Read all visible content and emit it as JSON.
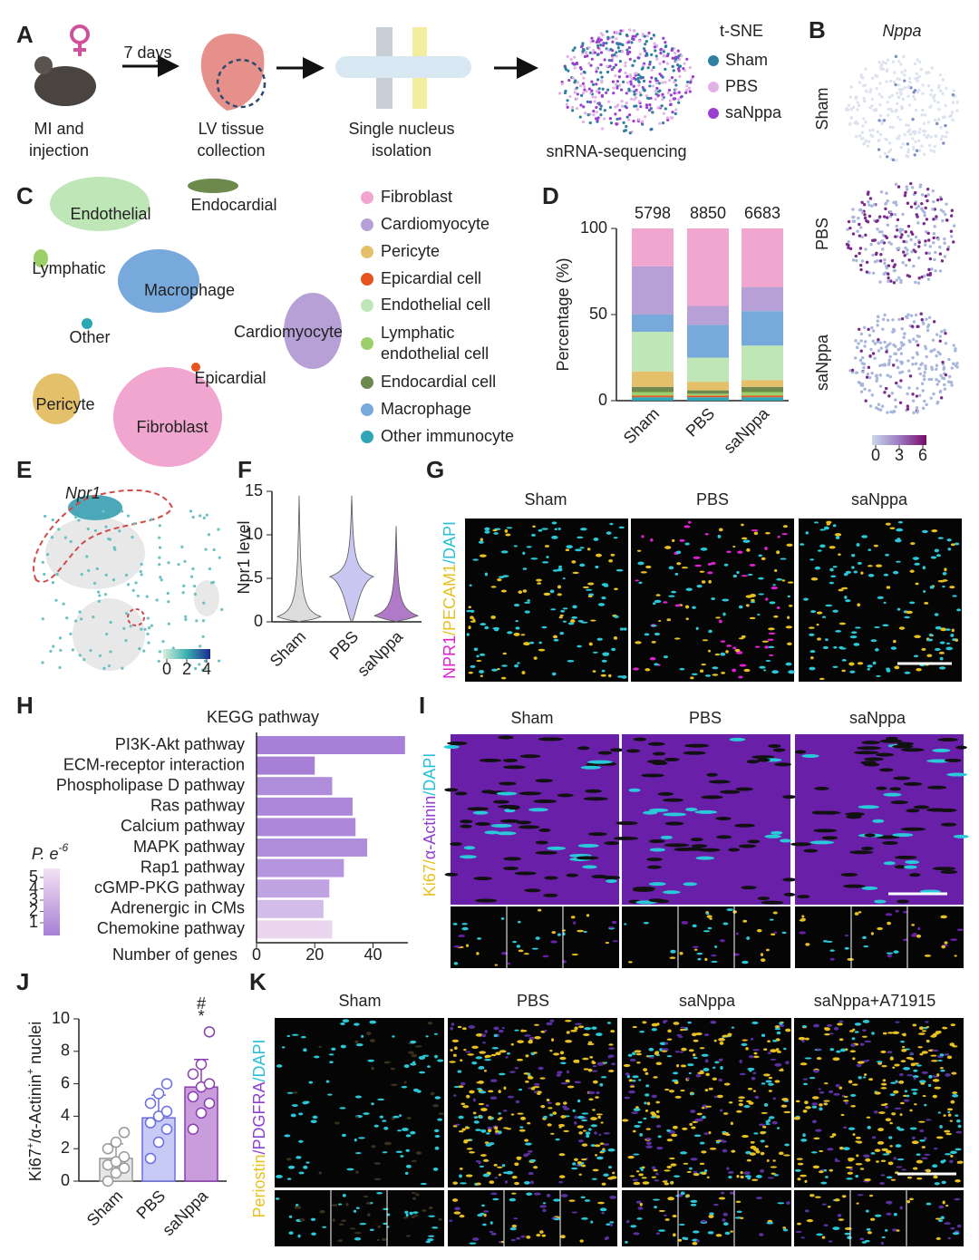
{
  "letters": [
    "A",
    "B",
    "C",
    "D",
    "E",
    "F",
    "G",
    "H",
    "I",
    "J",
    "K"
  ],
  "panel_a": {
    "arrow_label": "7 days",
    "steps": [
      [
        "MI and",
        "injection"
      ],
      [
        "LV tissue",
        "collection"
      ],
      [
        "Single nucleus",
        "isolation"
      ],
      [
        "snRNA-sequencing"
      ]
    ],
    "legend_title": "t-SNE",
    "legend": [
      {
        "name": "Sham",
        "color": "#2e7fa0"
      },
      {
        "name": "PBS",
        "color": "#e2b2e6"
      },
      {
        "name": "saNppa",
        "color": "#9b3fd0"
      }
    ]
  },
  "panel_b": {
    "gene": "Nppa",
    "rows": [
      "Sham",
      "PBS",
      "saNppa"
    ],
    "colorbar_ticks": [
      0,
      3,
      6
    ]
  },
  "panel_c": {
    "clusters": [
      "Endothelial",
      "Endocardial",
      "Lymphatic",
      "Macrophage",
      "Other",
      "Cardiomyocyte",
      "Epicardial",
      "Pericyte",
      "Fibroblast"
    ],
    "legend": [
      {
        "name": [
          "Fibroblast"
        ],
        "color": "#f0a6cf"
      },
      {
        "name": [
          "Cardiomyocyte"
        ],
        "color": "#b6a0d6"
      },
      {
        "name": [
          "Pericyte"
        ],
        "color": "#e4c06a"
      },
      {
        "name": [
          "Epicardial cell"
        ],
        "color": "#e5531f"
      },
      {
        "name": [
          "Endothelial cell"
        ],
        "color": "#bfe6b6"
      },
      {
        "name": [
          "Lymphatic",
          "endothelial cell"
        ],
        "color": "#9ccf6a"
      },
      {
        "name": [
          "Endocardial cell"
        ],
        "color": "#6d8a4c"
      },
      {
        "name": [
          "Macrophage"
        ],
        "color": "#78a9dc"
      },
      {
        "name": [
          "Other immunocyte"
        ],
        "color": "#2ea6b5"
      }
    ]
  },
  "panel_e": {
    "gene": "Npr1",
    "colorbar_ticks": [
      0,
      2,
      4
    ]
  },
  "panel_g": {
    "columns": [
      "Sham",
      "PBS",
      "saNppa"
    ],
    "stain": [
      {
        "text": "NPR1",
        "color": "#e020d0"
      },
      {
        "text": "/",
        "color": "#e8c020"
      },
      {
        "text": "PECAM1",
        "color": "#e8c020"
      },
      {
        "text": "/DAPI",
        "color": "#28c0d8"
      }
    ]
  },
  "panel_i": {
    "columns": [
      "Sham",
      "PBS",
      "saNppa"
    ],
    "stain": [
      {
        "text": "Ki67",
        "color": "#e8c020"
      },
      {
        "text": "/",
        "color": "#e8c020"
      },
      {
        "text": "α-Actinin",
        "color": "#9040d0"
      },
      {
        "text": "/DAPI",
        "color": "#28c0d8"
      }
    ]
  },
  "panel_k": {
    "columns": [
      "Sham",
      "PBS",
      "saNppa",
      "saNppa+A71915"
    ],
    "stain": [
      {
        "text": "Periostin",
        "color": "#e8c020"
      },
      {
        "text": "/PDGFRA",
        "color": "#9040d0"
      },
      {
        "text": "/DAPI",
        "color": "#28c0d8"
      }
    ]
  },
  "chart_data": [
    {
      "type": "stacked_bar",
      "categories": [
        "Sham",
        "PBS",
        "saNppa"
      ],
      "n": [
        5798,
        8850,
        6683
      ],
      "ylabel": "Percentage (%)",
      "ylim": [
        0,
        100
      ],
      "yticks": [
        0,
        50,
        100
      ],
      "series": [
        {
          "name": "Other immunocyte",
          "color": "#2ea6b5",
          "values": [
            2,
            2,
            2
          ]
        },
        {
          "name": "Epicardial cell",
          "color": "#e5531f",
          "values": [
            1,
            1,
            1
          ]
        },
        {
          "name": "Lymphatic endothelial cell",
          "color": "#9ccf6a",
          "values": [
            2,
            1,
            2
          ]
        },
        {
          "name": "Endocardial cell",
          "color": "#6d8a4c",
          "values": [
            3,
            2,
            3
          ]
        },
        {
          "name": "Pericyte",
          "color": "#e4c06a",
          "values": [
            9,
            5,
            4
          ]
        },
        {
          "name": "Endothelial cell",
          "color": "#bfe6b6",
          "values": [
            23,
            14,
            20
          ]
        },
        {
          "name": "Macrophage",
          "color": "#78a9dc",
          "values": [
            10,
            19,
            20
          ]
        },
        {
          "name": "Cardiomyocyte",
          "color": "#b6a0d6",
          "values": [
            28,
            11,
            14
          ]
        },
        {
          "name": "Fibroblast",
          "color": "#f0a6cf",
          "values": [
            22,
            45,
            34
          ]
        }
      ]
    },
    {
      "type": "violin",
      "categories": [
        "Sham",
        "PBS",
        "saNppa"
      ],
      "values": [
        0.6,
        5.2,
        0.7
      ],
      "max": [
        14.5,
        14.5,
        11
      ],
      "colors": [
        "#dcdcdc",
        "#c9c6f2",
        "#b07ac9"
      ],
      "ylabel": "Npr1 level",
      "ylim": [
        0,
        15
      ],
      "yticks": [
        0,
        5,
        10,
        15
      ]
    },
    {
      "type": "hbar",
      "title": "KEGG pathway",
      "categories": [
        "PI3K-Akt pathway",
        "ECM-receptor interaction",
        "Phospholipase D pathway",
        "Ras pathway",
        "Calcium pathway",
        "MAPK pathway",
        "Rap1 pathway",
        "cGMP-PKG pathway",
        "Adrenergic in CMs",
        "Chemokine pathway"
      ],
      "values": [
        51,
        20,
        26,
        33,
        34,
        38,
        30,
        25,
        23,
        26
      ],
      "colors": [
        "#a77fd6",
        "#a77fd6",
        "#b08ddb",
        "#ad87d9",
        "#ad87d9",
        "#b08ddb",
        "#b595dd",
        "#c0a3e2",
        "#d2bdea",
        "#ead6ee"
      ],
      "category_colors": [
        null,
        null,
        null,
        null,
        null,
        null,
        null,
        "#8a3fc0",
        null,
        null
      ],
      "xlabel": "Number of genes",
      "xlim": [
        0,
        52
      ],
      "xticks": [
        0,
        20,
        40
      ],
      "colorscale": {
        "title": [
          {
            "text": "P. e"
          },
          {
            "text": "-6",
            "sup": true
          }
        ],
        "ticks": [
          1,
          2,
          3,
          4,
          5
        ],
        "colors": [
          "#a77fd6",
          "#f3e2f3"
        ]
      }
    },
    {
      "type": "bar_scatter",
      "categories": [
        "Sham",
        "PBS",
        "saNppa"
      ],
      "values": [
        1.4,
        3.9,
        5.8
      ],
      "errors": [
        0.9,
        1.4,
        1.7
      ],
      "points": [
        [
          0,
          0.5,
          0.8,
          1,
          1.2,
          1.5,
          2,
          2.4,
          3
        ],
        [
          1.4,
          2.4,
          3.2,
          3.6,
          4.0,
          4.3,
          4.8,
          5.4,
          6.0
        ],
        [
          3.2,
          4.2,
          4.8,
          5.2,
          5.8,
          6.0,
          6.6,
          7.2,
          9.2
        ]
      ],
      "fills": [
        "#e6e6e6",
        "#c7caf5",
        "#c99cdb"
      ],
      "edges": [
        "#999999",
        "#6a6ee0",
        "#8a3fb0"
      ],
      "annotations": [
        "#",
        "*"
      ],
      "ylabel_parts": [
        {
          "text": "Ki67"
        },
        {
          "text": "+",
          "sup": true
        },
        {
          "text": "/α-Actinin"
        },
        {
          "text": "+",
          "sup": true
        },
        {
          "text": " nuclei"
        }
      ],
      "ylim": [
        0,
        10
      ],
      "yticks": [
        0,
        2,
        4,
        6,
        8,
        10
      ]
    }
  ]
}
